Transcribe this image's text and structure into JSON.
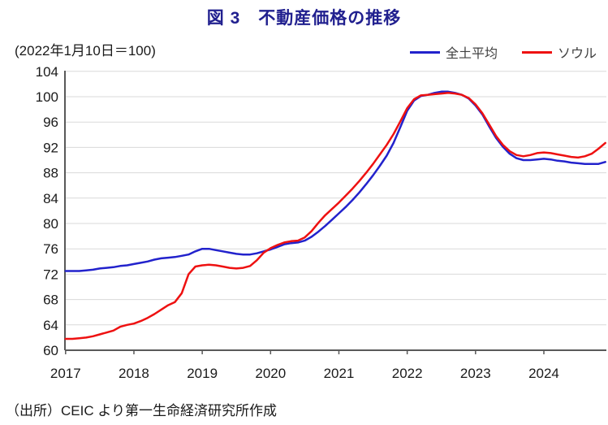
{
  "title": "図 3　不動産価格の推移",
  "subtitle": "(2022年1月10日＝100)",
  "source_note": "（出所）CEIC より第一生命経済研究所作成",
  "colors": {
    "title": "#21208F",
    "gridline": "#D9D9D9",
    "axis": "#595959",
    "tick_label": "#1A1A1A",
    "legend_text": "#404040",
    "background": "#FFFFFF"
  },
  "chart_data": {
    "type": "line",
    "title": "図 3　不動産価格の推移",
    "subtitle": "(2022年1月10日＝100)",
    "xlabel": "",
    "ylabel": "",
    "ylim": [
      60,
      104
    ],
    "yticks": [
      60,
      64,
      68,
      72,
      76,
      80,
      84,
      88,
      92,
      96,
      100,
      104
    ],
    "categories": [
      "2017",
      "2018",
      "2019",
      "2020",
      "2021",
      "2022",
      "2023",
      "2024"
    ],
    "x_range": [
      2017.0,
      2024.9
    ],
    "grid": "horizontal",
    "legend_position": "top-right",
    "x": [
      2017.0,
      2017.1,
      2017.2,
      2017.3,
      2017.4,
      2017.5,
      2017.6,
      2017.7,
      2017.8,
      2017.9,
      2018.0,
      2018.1,
      2018.2,
      2018.3,
      2018.4,
      2018.5,
      2018.6,
      2018.7,
      2018.8,
      2018.9,
      2019.0,
      2019.1,
      2019.2,
      2019.3,
      2019.4,
      2019.5,
      2019.6,
      2019.7,
      2019.8,
      2019.9,
      2020.0,
      2020.1,
      2020.2,
      2020.3,
      2020.4,
      2020.5,
      2020.6,
      2020.7,
      2020.8,
      2020.9,
      2021.0,
      2021.1,
      2021.2,
      2021.3,
      2021.4,
      2021.5,
      2021.6,
      2021.7,
      2021.8,
      2021.9,
      2022.0,
      2022.1,
      2022.2,
      2022.3,
      2022.4,
      2022.5,
      2022.6,
      2022.7,
      2022.8,
      2022.9,
      2023.0,
      2023.1,
      2023.2,
      2023.3,
      2023.4,
      2023.5,
      2023.6,
      2023.7,
      2023.8,
      2023.9,
      2024.0,
      2024.1,
      2024.2,
      2024.3,
      2024.4,
      2024.5,
      2024.6,
      2024.7,
      2024.8,
      2024.9
    ],
    "series": [
      {
        "name": "全土平均",
        "color": "#2222CC",
        "values": [
          72.5,
          72.5,
          72.5,
          72.6,
          72.7,
          72.9,
          73.0,
          73.1,
          73.3,
          73.4,
          73.6,
          73.8,
          74.0,
          74.3,
          74.5,
          74.6,
          74.7,
          74.9,
          75.1,
          75.6,
          76.0,
          76.0,
          75.8,
          75.6,
          75.4,
          75.2,
          75.1,
          75.1,
          75.3,
          75.6,
          75.9,
          76.3,
          76.7,
          76.9,
          77.0,
          77.3,
          77.9,
          78.7,
          79.6,
          80.6,
          81.6,
          82.6,
          83.7,
          84.9,
          86.2,
          87.6,
          89.1,
          90.7,
          92.7,
          95.2,
          97.8,
          99.4,
          100.1,
          100.3,
          100.6,
          100.8,
          100.8,
          100.6,
          100.3,
          99.7,
          98.6,
          97.2,
          95.3,
          93.5,
          92.1,
          91.0,
          90.3,
          90.0,
          90.0,
          90.1,
          90.2,
          90.1,
          89.9,
          89.8,
          89.6,
          89.5,
          89.4,
          89.4,
          89.4,
          89.7
        ]
      },
      {
        "name": "ソウル",
        "color": "#EE1111",
        "values": [
          61.8,
          61.8,
          61.9,
          62.0,
          62.2,
          62.5,
          62.8,
          63.1,
          63.7,
          64.0,
          64.2,
          64.6,
          65.1,
          65.7,
          66.4,
          67.1,
          67.6,
          69.0,
          72.0,
          73.2,
          73.4,
          73.5,
          73.4,
          73.2,
          73.0,
          72.9,
          73.0,
          73.3,
          74.2,
          75.4,
          76.1,
          76.6,
          77.0,
          77.2,
          77.3,
          77.8,
          78.8,
          80.1,
          81.3,
          82.3,
          83.3,
          84.4,
          85.5,
          86.7,
          88.0,
          89.4,
          90.9,
          92.4,
          94.1,
          96.1,
          98.2,
          99.6,
          100.2,
          100.3,
          100.4,
          100.5,
          100.6,
          100.5,
          100.3,
          99.8,
          98.8,
          97.4,
          95.6,
          93.8,
          92.4,
          91.4,
          90.8,
          90.6,
          90.8,
          91.1,
          91.2,
          91.1,
          90.9,
          90.7,
          90.5,
          90.4,
          90.6,
          91.0,
          91.8,
          92.7
        ]
      }
    ]
  }
}
